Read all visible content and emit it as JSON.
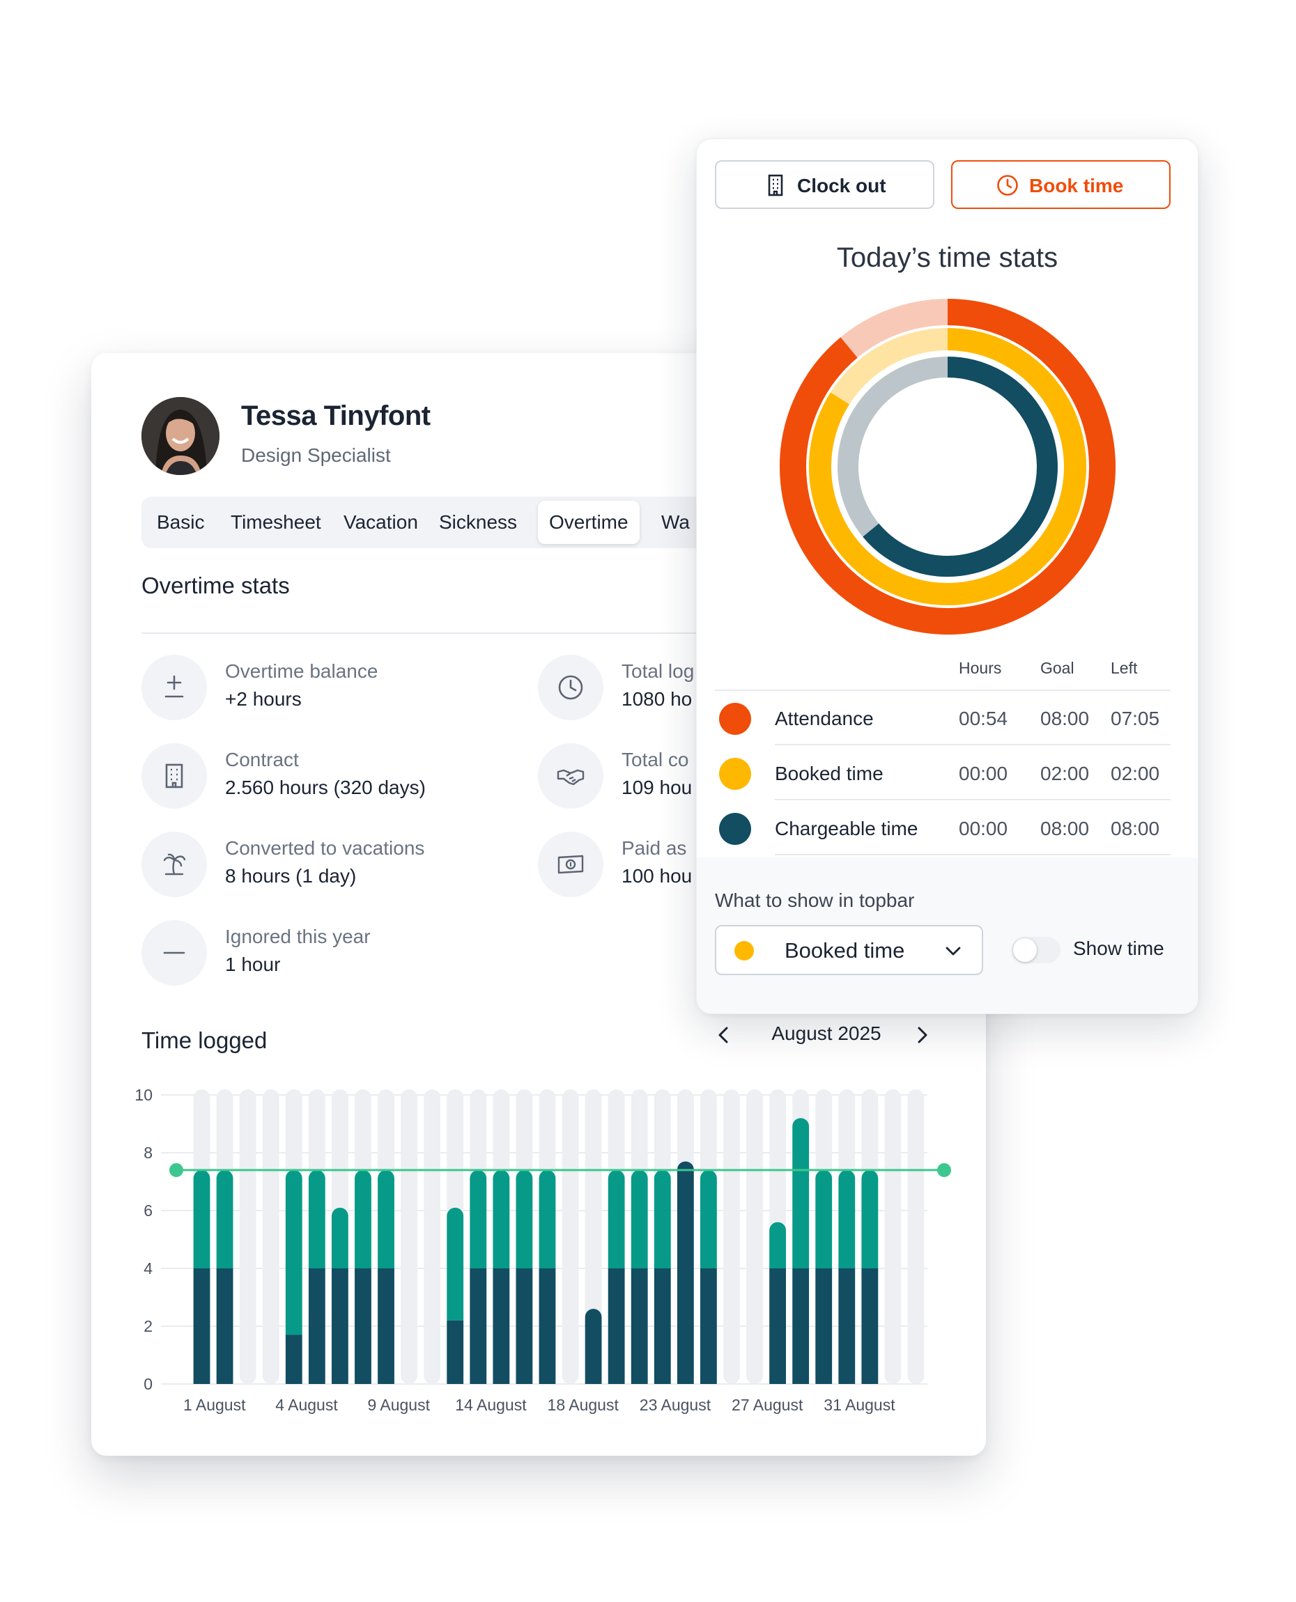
{
  "profile": {
    "name": "Tessa Tinyfont",
    "role": "Design Specialist"
  },
  "tabs": [
    {
      "label": "Basic"
    },
    {
      "label": "Timesheet"
    },
    {
      "label": "Vacation"
    },
    {
      "label": "Sickness"
    },
    {
      "label": "Overtime",
      "active": true
    },
    {
      "label": "Wa"
    }
  ],
  "overtime": {
    "title": "Overtime stats",
    "stats": [
      {
        "icon": "plus-minus-icon",
        "label": "Overtime balance",
        "value": "+2 hours"
      },
      {
        "icon": "clock-icon",
        "label": "Total log",
        "value": "1080 ho"
      },
      {
        "icon": "building-icon",
        "label": "Contract",
        "value": "2.560 hours (320 days)"
      },
      {
        "icon": "handshake-icon",
        "label": "Total co",
        "value": "109 hou"
      },
      {
        "icon": "palm-tree-icon",
        "label": "Converted to vacations",
        "value": "8 hours (1 day)"
      },
      {
        "icon": "money-icon",
        "label": "Paid as",
        "value": "100 hou"
      },
      {
        "icon": "minus-icon",
        "label": "Ignored this year",
        "value": "1 hour"
      }
    ]
  },
  "time_logged": {
    "title": "Time logged",
    "month": "August 2025"
  },
  "chart_data": {
    "type": "bar",
    "stacked": true,
    "ylim": [
      0,
      10
    ],
    "yticks": [
      0,
      2,
      4,
      6,
      8,
      10
    ],
    "goal_line": 7.4,
    "x_tick_labels": [
      {
        "index": 0,
        "label": "1 August"
      },
      {
        "index": 4,
        "label": "4 August"
      },
      {
        "index": 8,
        "label": "9 August"
      },
      {
        "index": 12,
        "label": "14 August"
      },
      {
        "index": 16,
        "label": "18 August"
      },
      {
        "index": 20,
        "label": "23 August"
      },
      {
        "index": 24,
        "label": "27 August"
      },
      {
        "index": 28,
        "label": "31 August"
      }
    ],
    "series": [
      {
        "color": "#124d62",
        "values": [
          4,
          4,
          0,
          0,
          1.7,
          4,
          4,
          4,
          4,
          0,
          0,
          2.2,
          4,
          4,
          4,
          4,
          0,
          2.6,
          4,
          4,
          4,
          7.7,
          4,
          0,
          0,
          4,
          4,
          4,
          4,
          4,
          0,
          0
        ]
      },
      {
        "color": "#079a89",
        "values": [
          3.4,
          3.4,
          0,
          0,
          5.7,
          3.4,
          2.1,
          3.4,
          3.4,
          0,
          0,
          3.9,
          3.4,
          3.4,
          3.4,
          3.4,
          0,
          0,
          3.4,
          3.4,
          3.4,
          0,
          3.4,
          0,
          0,
          1.6,
          5.2,
          3.4,
          3.4,
          3.4,
          0,
          0
        ]
      }
    ]
  },
  "panel": {
    "clock_out_label": "Clock out",
    "book_time_label": "Book time",
    "title": "Today’s time stats",
    "table": {
      "headers": [
        "Hours",
        "Goal",
        "Left"
      ],
      "rows": [
        {
          "name": "Attendance",
          "color": "#f04d0a",
          "hours": "00:54",
          "goal": "08:00",
          "left": "07:05"
        },
        {
          "name": "Booked time",
          "color": "#ffb800",
          "hours": "00:00",
          "goal": "02:00",
          "left": "02:00"
        },
        {
          "name": "Chargeable time",
          "color": "#124d62",
          "hours": "00:00",
          "goal": "08:00",
          "left": "08:00"
        }
      ]
    },
    "donut": [
      {
        "name": "Attendance",
        "color": "#f04d0a",
        "track": "#f9c9b8",
        "fraction": 0.89
      },
      {
        "name": "Booked time",
        "color": "#ffb800",
        "track": "#ffe3a3",
        "fraction": 0.84
      },
      {
        "name": "Chargeable time",
        "color": "#124d62",
        "track": "#bcc5ca",
        "fraction": 0.64
      }
    ],
    "topbar_label": "What to show in topbar",
    "topbar_select": "Booked time",
    "show_time_label": "Show time"
  }
}
